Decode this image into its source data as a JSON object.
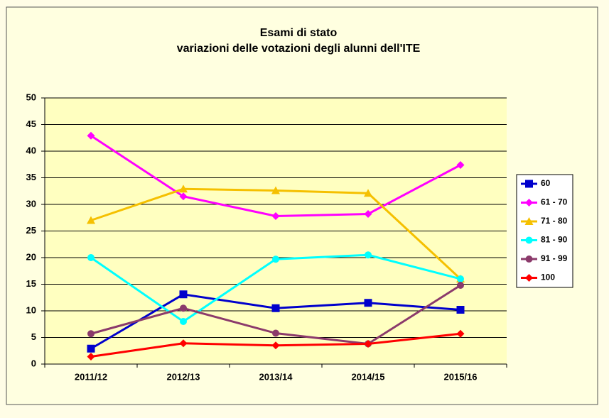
{
  "chart_data": {
    "type": "line",
    "title": "Esami di stato",
    "subtitle": "variazioni delle votazioni degli alunni dell'ITE",
    "categories": [
      "2011/12",
      "2012/13",
      "2013/14",
      "2014/15",
      "2015/16"
    ],
    "series": [
      {
        "name": "60",
        "color": "#0000cc",
        "marker": "square",
        "values": [
          2.9,
          13.1,
          10.5,
          11.5,
          10.2
        ]
      },
      {
        "name": "61 - 70",
        "color": "#ff00ff",
        "marker": "diamond",
        "values": [
          42.9,
          31.5,
          27.8,
          28.2,
          37.4
        ]
      },
      {
        "name": "71 - 80",
        "color": "#f5c000",
        "marker": "triangle",
        "values": [
          27,
          32.9,
          32.6,
          32.1,
          16
        ]
      },
      {
        "name": "81 - 90",
        "color": "#00ffff",
        "marker": "circle",
        "values": [
          20,
          8,
          19.7,
          20.5,
          16
        ]
      },
      {
        "name": "91 - 99",
        "color": "#8b3a6b",
        "marker": "circle",
        "values": [
          5.7,
          10.5,
          5.8,
          3.8,
          14.8
        ]
      },
      {
        "name": "100",
        "color": "#ff0000",
        "marker": "diamond",
        "values": [
          1.4,
          3.9,
          3.5,
          3.8,
          5.7
        ]
      }
    ],
    "ylim": [
      0,
      50
    ],
    "yticks": [
      0,
      5,
      10,
      15,
      20,
      25,
      30,
      35,
      40,
      45,
      50
    ],
    "grid": true,
    "legend": "right"
  }
}
